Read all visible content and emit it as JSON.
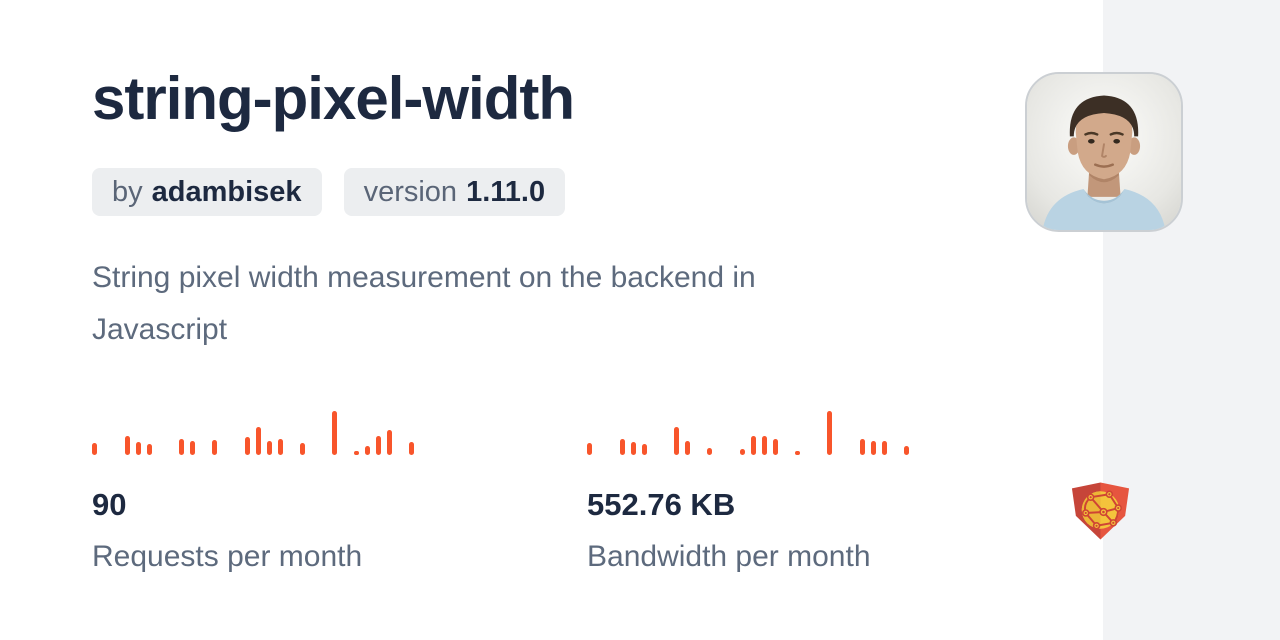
{
  "card": {
    "title": "string-pixel-width",
    "author_prefix": "by",
    "author": "adambisek",
    "version_prefix": "version",
    "version": "1.11.0",
    "description": "String pixel width measurement on the backend in Javascript"
  },
  "stats": [
    {
      "value": "90",
      "label": "Requests per month"
    },
    {
      "value": "552.76 KB",
      "label": "Bandwidth per month"
    }
  ],
  "chart_data": [
    {
      "type": "bar",
      "name": "requests-sparkline",
      "title": "Requests per month (daily sparkline, ~30 days)",
      "values": [
        28,
        0,
        0,
        44,
        30,
        24,
        0,
        0,
        36,
        32,
        0,
        34,
        0,
        0,
        40,
        64,
        32,
        36,
        0,
        28,
        0,
        0,
        100,
        0,
        10,
        20,
        44,
        56,
        0,
        29
      ],
      "ylim": [
        0,
        100
      ],
      "unit": "percent of tallest bar (absolute daily values not labeled on card)",
      "grid": false,
      "legend": false,
      "color": "#f8552b",
      "total_label": "90"
    },
    {
      "type": "bar",
      "name": "bandwidth-sparkline",
      "title": "Bandwidth per month (daily sparkline, ~30 days)",
      "values": [
        28,
        0,
        0,
        36,
        30,
        24,
        0,
        0,
        64,
        32,
        0,
        16,
        0,
        0,
        14,
        44,
        44,
        36,
        0,
        8,
        0,
        0,
        100,
        0,
        0,
        36,
        32,
        32,
        0,
        20
      ],
      "ylim": [
        0,
        100
      ],
      "unit": "percent of tallest bar (absolute daily values not labeled on card)",
      "grid": false,
      "legend": false,
      "color": "#f8552b",
      "total_label": "552.76 KB"
    }
  ],
  "icons": {
    "avatar": "author-avatar-photo",
    "logo": "jsdelivr-shield-globe-logo"
  },
  "colors": {
    "background": "#ffffff",
    "panel_bg": "#f2f3f5",
    "heading": "#1d2940",
    "muted_text": "#5d6a7d",
    "badge_bg": "#eceef0",
    "accent": "#f8552b",
    "logo_red_dark": "#c64539",
    "logo_red": "#e6553f",
    "logo_gold": "#f4c33c"
  }
}
